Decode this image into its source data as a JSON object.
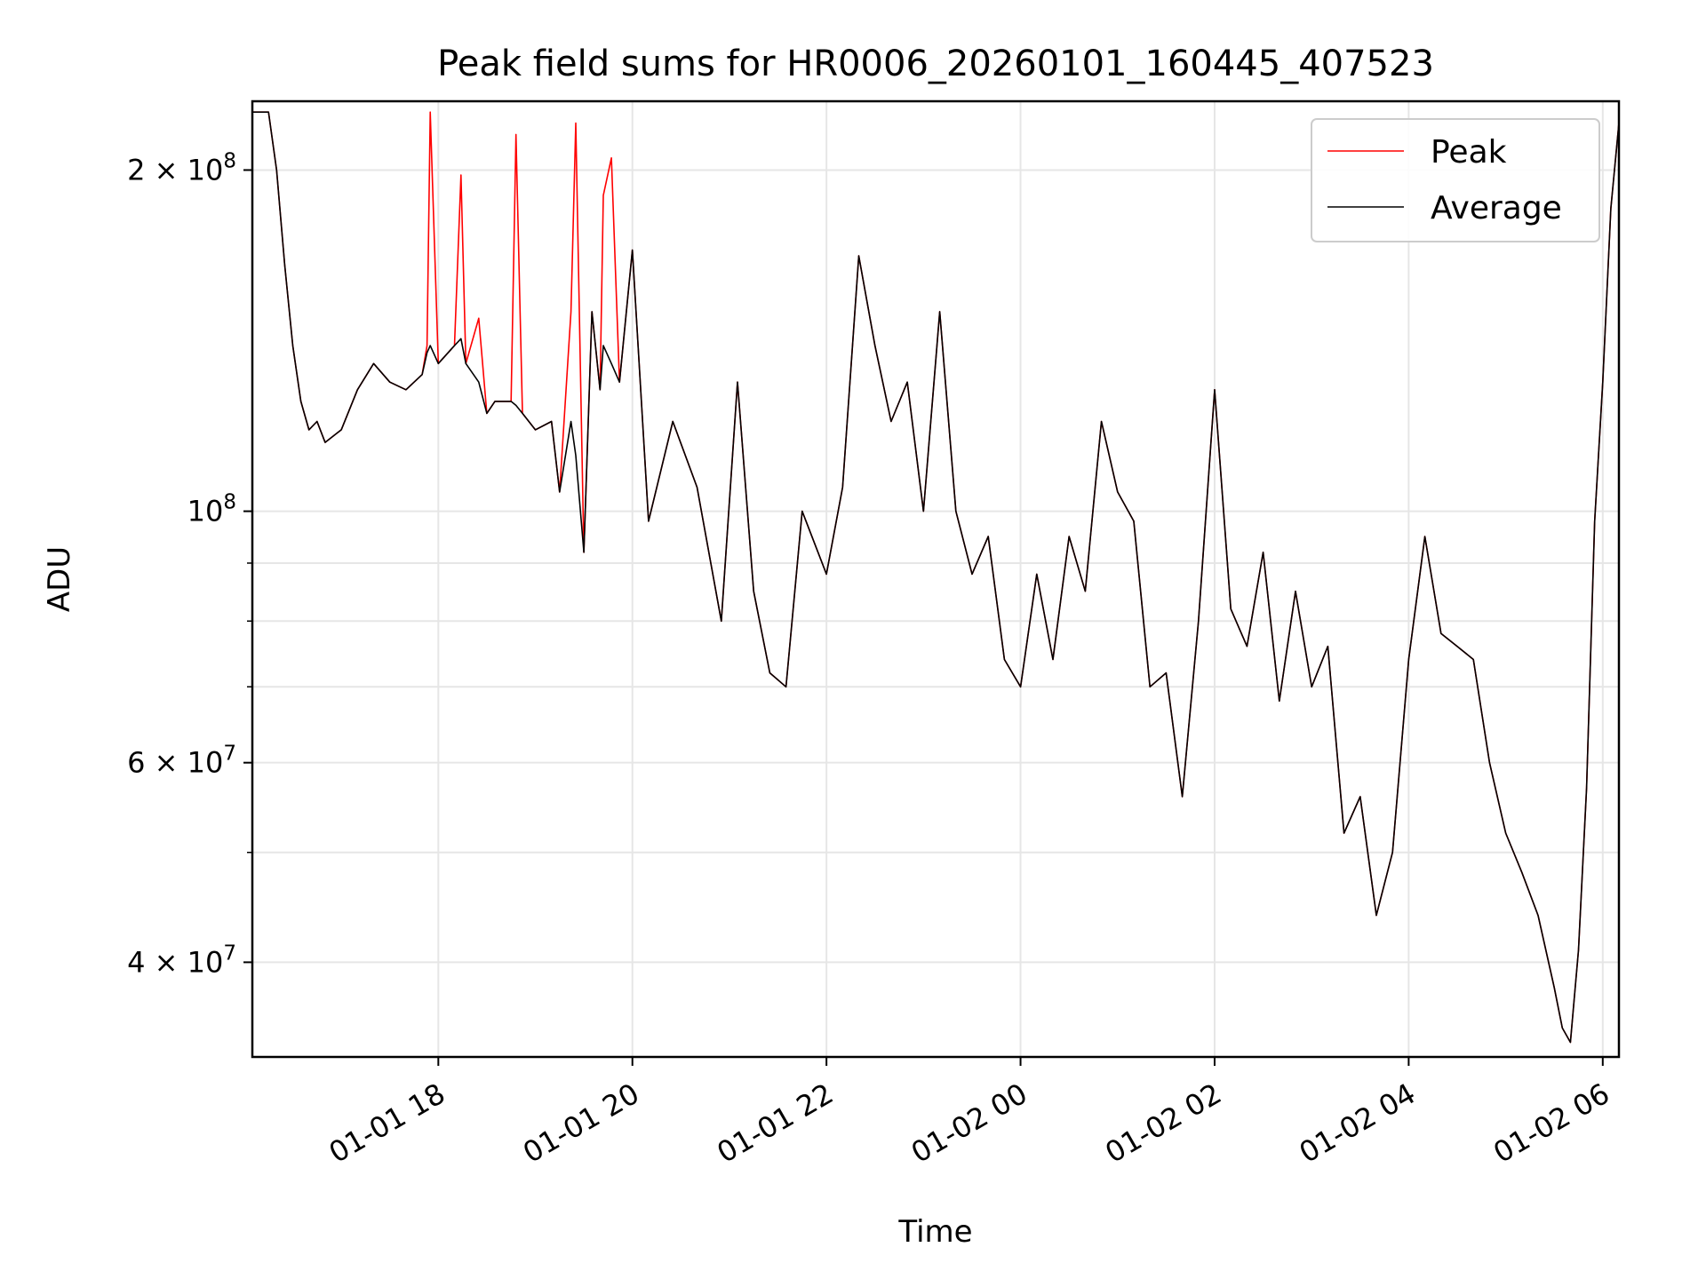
{
  "chart_data": {
    "type": "line",
    "title": "Peak field sums for HR0006_20260101_160445_407523",
    "xlabel": "Time",
    "ylabel": "ADU",
    "yscale": "log",
    "xlim": [
      "2026-01-01 16:05",
      "2026-01-02 06:10"
    ],
    "ylim": [
      33000000,
      230000000
    ],
    "grid": true,
    "legend": {
      "location": "top-right",
      "entries": [
        "Peak",
        "Average"
      ]
    },
    "x_ticks": [
      {
        "value": "2026-01-01 18:00",
        "label": "01-01 18"
      },
      {
        "value": "2026-01-01 20:00",
        "label": "01-01 20"
      },
      {
        "value": "2026-01-01 22:00",
        "label": "01-01 22"
      },
      {
        "value": "2026-01-02 00:00",
        "label": "01-02 00"
      },
      {
        "value": "2026-01-02 02:00",
        "label": "01-02 02"
      },
      {
        "value": "2026-01-02 04:00",
        "label": "01-02 04"
      },
      {
        "value": "2026-01-02 06:00",
        "label": "01-02 06"
      }
    ],
    "y_ticks": [
      {
        "value": 40000000,
        "label": "4 × 10",
        "exp": "7"
      },
      {
        "value": 60000000,
        "label": "6 × 10",
        "exp": "7"
      },
      {
        "value": 100000000,
        "label": "10",
        "exp": "8"
      },
      {
        "value": 200000000,
        "label": "2 × 10",
        "exp": "8"
      }
    ],
    "y_minor_ticks": [
      50000000,
      70000000,
      80000000,
      90000000
    ],
    "series": [
      {
        "name": "Peak",
        "color": "#ff0000",
        "x": [
          "2026-01-01 16:05",
          "2026-01-01 16:15",
          "2026-01-01 16:20",
          "2026-01-01 16:25",
          "2026-01-01 16:30",
          "2026-01-01 16:35",
          "2026-01-01 16:40",
          "2026-01-01 16:45",
          "2026-01-01 16:50",
          "2026-01-01 17:00",
          "2026-01-01 17:10",
          "2026-01-01 17:20",
          "2026-01-01 17:30",
          "2026-01-01 17:40",
          "2026-01-01 17:50",
          "2026-01-01 17:53",
          "2026-01-01 17:55",
          "2026-01-01 18:00",
          "2026-01-01 18:10",
          "2026-01-01 18:14",
          "2026-01-01 18:17",
          "2026-01-01 18:25",
          "2026-01-01 18:30",
          "2026-01-01 18:35",
          "2026-01-01 18:45",
          "2026-01-01 18:48",
          "2026-01-01 18:52",
          "2026-01-01 19:00",
          "2026-01-01 19:10",
          "2026-01-01 19:15",
          "2026-01-01 19:22",
          "2026-01-01 19:25",
          "2026-01-01 19:30",
          "2026-01-01 19:35",
          "2026-01-01 19:40",
          "2026-01-01 19:42",
          "2026-01-01 19:47",
          "2026-01-01 19:52",
          "2026-01-01 20:00",
          "2026-01-01 20:10",
          "2026-01-01 20:25",
          "2026-01-01 20:40",
          "2026-01-01 20:55",
          "2026-01-01 21:05",
          "2026-01-01 21:15",
          "2026-01-01 21:25",
          "2026-01-01 21:35",
          "2026-01-01 21:45",
          "2026-01-01 22:00",
          "2026-01-01 22:10",
          "2026-01-01 22:20",
          "2026-01-01 22:30",
          "2026-01-01 22:40",
          "2026-01-01 22:50",
          "2026-01-01 23:00",
          "2026-01-01 23:10",
          "2026-01-01 23:20",
          "2026-01-01 23:30",
          "2026-01-01 23:40",
          "2026-01-01 23:50",
          "2026-01-02 00:00",
          "2026-01-02 00:10",
          "2026-01-02 00:20",
          "2026-01-02 00:30",
          "2026-01-02 00:40",
          "2026-01-02 00:50",
          "2026-01-02 01:00",
          "2026-01-02 01:10",
          "2026-01-02 01:20",
          "2026-01-02 01:30",
          "2026-01-02 01:40",
          "2026-01-02 01:50",
          "2026-01-02 02:00",
          "2026-01-02 02:10",
          "2026-01-02 02:20",
          "2026-01-02 02:30",
          "2026-01-02 02:40",
          "2026-01-02 02:50",
          "2026-01-02 03:00",
          "2026-01-02 03:10",
          "2026-01-02 03:20",
          "2026-01-02 03:30",
          "2026-01-02 03:40",
          "2026-01-02 03:50",
          "2026-01-02 04:00",
          "2026-01-02 04:10",
          "2026-01-02 04:20",
          "2026-01-02 04:30",
          "2026-01-02 04:40",
          "2026-01-02 04:50",
          "2026-01-02 05:00",
          "2026-01-02 05:10",
          "2026-01-02 05:20",
          "2026-01-02 05:30",
          "2026-01-02 05:35",
          "2026-01-02 05:40",
          "2026-01-02 05:45",
          "2026-01-02 05:50",
          "2026-01-02 05:55",
          "2026-01-02 06:00",
          "2026-01-02 06:05",
          "2026-01-02 06:10"
        ],
        "y": [
          225000000,
          225000000,
          200000000,
          165000000,
          140000000,
          125000000,
          118000000,
          120000000,
          115000000,
          118000000,
          128000000,
          135000000,
          130000000,
          128000000,
          132000000,
          140000000,
          225000000,
          135000000,
          140000000,
          198000000,
          135000000,
          148000000,
          122000000,
          125000000,
          125000000,
          215000000,
          122000000,
          118000000,
          120000000,
          104000000,
          150000000,
          220000000,
          92000000,
          150000000,
          128000000,
          190000000,
          205000000,
          130000000,
          170000000,
          98000000,
          120000000,
          105000000,
          80000000,
          130000000,
          85000000,
          72000000,
          70000000,
          100000000,
          88000000,
          105000000,
          168000000,
          140000000,
          120000000,
          130000000,
          100000000,
          150000000,
          100000000,
          88000000,
          95000000,
          74000000,
          70000000,
          88000000,
          74000000,
          95000000,
          85000000,
          120000000,
          104000000,
          98000000,
          70000000,
          72000000,
          56000000,
          80000000,
          128000000,
          82000000,
          76000000,
          92000000,
          68000000,
          85000000,
          70000000,
          76000000,
          52000000,
          56000000,
          44000000,
          50000000,
          74000000,
          95000000,
          78000000,
          76000000,
          74000000,
          60000000,
          52000000,
          48000000,
          44000000,
          38000000,
          35000000,
          34000000,
          41000000,
          57000000,
          98000000,
          130000000,
          185000000,
          220000000
        ]
      },
      {
        "name": "Average",
        "color": "#000000",
        "x": [
          "2026-01-01 16:05",
          "2026-01-01 16:15",
          "2026-01-01 16:20",
          "2026-01-01 16:25",
          "2026-01-01 16:30",
          "2026-01-01 16:35",
          "2026-01-01 16:40",
          "2026-01-01 16:45",
          "2026-01-01 16:50",
          "2026-01-01 17:00",
          "2026-01-01 17:10",
          "2026-01-01 17:20",
          "2026-01-01 17:30",
          "2026-01-01 17:40",
          "2026-01-01 17:50",
          "2026-01-01 17:53",
          "2026-01-01 17:55",
          "2026-01-01 18:00",
          "2026-01-01 18:10",
          "2026-01-01 18:14",
          "2026-01-01 18:17",
          "2026-01-01 18:25",
          "2026-01-01 18:30",
          "2026-01-01 18:35",
          "2026-01-01 18:45",
          "2026-01-01 18:48",
          "2026-01-01 18:52",
          "2026-01-01 19:00",
          "2026-01-01 19:10",
          "2026-01-01 19:15",
          "2026-01-01 19:22",
          "2026-01-01 19:25",
          "2026-01-01 19:30",
          "2026-01-01 19:35",
          "2026-01-01 19:40",
          "2026-01-01 19:42",
          "2026-01-01 19:47",
          "2026-01-01 19:52",
          "2026-01-01 20:00",
          "2026-01-01 20:10",
          "2026-01-01 20:25",
          "2026-01-01 20:40",
          "2026-01-01 20:55",
          "2026-01-01 21:05",
          "2026-01-01 21:15",
          "2026-01-01 21:25",
          "2026-01-01 21:35",
          "2026-01-01 21:45",
          "2026-01-01 22:00",
          "2026-01-01 22:10",
          "2026-01-01 22:20",
          "2026-01-01 22:30",
          "2026-01-01 22:40",
          "2026-01-01 22:50",
          "2026-01-01 23:00",
          "2026-01-01 23:10",
          "2026-01-01 23:20",
          "2026-01-01 23:30",
          "2026-01-01 23:40",
          "2026-01-01 23:50",
          "2026-01-02 00:00",
          "2026-01-02 00:10",
          "2026-01-02 00:20",
          "2026-01-02 00:30",
          "2026-01-02 00:40",
          "2026-01-02 00:50",
          "2026-01-02 01:00",
          "2026-01-02 01:10",
          "2026-01-02 01:20",
          "2026-01-02 01:30",
          "2026-01-02 01:40",
          "2026-01-02 01:50",
          "2026-01-02 02:00",
          "2026-01-02 02:10",
          "2026-01-02 02:20",
          "2026-01-02 02:30",
          "2026-01-02 02:40",
          "2026-01-02 02:50",
          "2026-01-02 03:00",
          "2026-01-02 03:10",
          "2026-01-02 03:20",
          "2026-01-02 03:30",
          "2026-01-02 03:40",
          "2026-01-02 03:50",
          "2026-01-02 04:00",
          "2026-01-02 04:10",
          "2026-01-02 04:20",
          "2026-01-02 04:30",
          "2026-01-02 04:40",
          "2026-01-02 04:50",
          "2026-01-02 05:00",
          "2026-01-02 05:10",
          "2026-01-02 05:20",
          "2026-01-02 05:30",
          "2026-01-02 05:35",
          "2026-01-02 05:40",
          "2026-01-02 05:45",
          "2026-01-02 05:50",
          "2026-01-02 05:55",
          "2026-01-02 06:00",
          "2026-01-02 06:05",
          "2026-01-02 06:10"
        ],
        "y": [
          225000000,
          225000000,
          200000000,
          165000000,
          140000000,
          125000000,
          118000000,
          120000000,
          115000000,
          118000000,
          128000000,
          135000000,
          130000000,
          128000000,
          132000000,
          138000000,
          140000000,
          135000000,
          140000000,
          142000000,
          135000000,
          130000000,
          122000000,
          125000000,
          125000000,
          124000000,
          122000000,
          118000000,
          120000000,
          104000000,
          120000000,
          112000000,
          92000000,
          150000000,
          128000000,
          140000000,
          135000000,
          130000000,
          170000000,
          98000000,
          120000000,
          105000000,
          80000000,
          130000000,
          85000000,
          72000000,
          70000000,
          100000000,
          88000000,
          105000000,
          168000000,
          140000000,
          120000000,
          130000000,
          100000000,
          150000000,
          100000000,
          88000000,
          95000000,
          74000000,
          70000000,
          88000000,
          74000000,
          95000000,
          85000000,
          120000000,
          104000000,
          98000000,
          70000000,
          72000000,
          56000000,
          80000000,
          128000000,
          82000000,
          76000000,
          92000000,
          68000000,
          85000000,
          70000000,
          76000000,
          52000000,
          56000000,
          44000000,
          50000000,
          74000000,
          95000000,
          78000000,
          76000000,
          74000000,
          60000000,
          52000000,
          48000000,
          44000000,
          38000000,
          35000000,
          34000000,
          41000000,
          57000000,
          98000000,
          130000000,
          185000000,
          220000000
        ]
      }
    ]
  }
}
